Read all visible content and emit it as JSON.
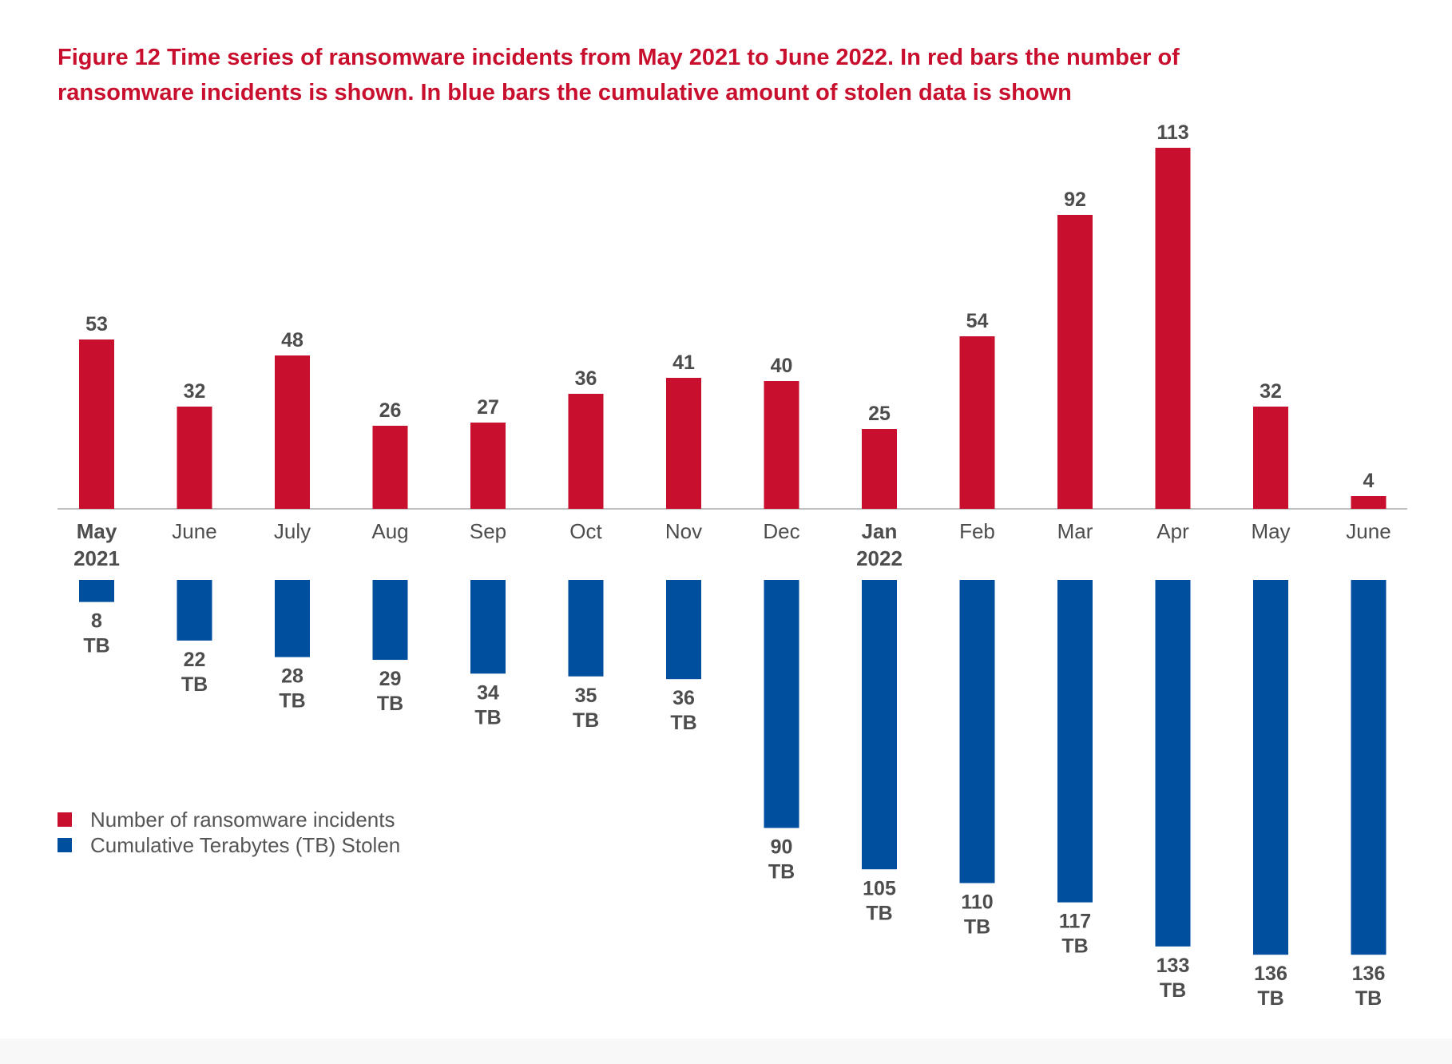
{
  "figure": {
    "title_line1": "Figure 12 Time series of ransomware incidents from May 2021 to June 2022. In red bars the number of",
    "title_line2": "ransomware incidents is shown. In blue bars the cumulative amount of stolen data is shown"
  },
  "colors": {
    "incidents": "#c8102e",
    "stolen": "#004f9f",
    "axis": "#bfbfbf",
    "label": "#4d4d4d",
    "title": "#c8102e"
  },
  "chart_data": {
    "type": "bar",
    "title": "",
    "xlabel": "",
    "ylabel": "",
    "categories": [
      {
        "month": "May",
        "year": "2021"
      },
      {
        "month": "June",
        "year": ""
      },
      {
        "month": "July",
        "year": ""
      },
      {
        "month": "Aug",
        "year": ""
      },
      {
        "month": "Sep",
        "year": ""
      },
      {
        "month": "Oct",
        "year": ""
      },
      {
        "month": "Nov",
        "year": ""
      },
      {
        "month": "Dec",
        "year": ""
      },
      {
        "month": "Jan",
        "year": "2022"
      },
      {
        "month": "Feb",
        "year": ""
      },
      {
        "month": "Mar",
        "year": ""
      },
      {
        "month": "Apr",
        "year": ""
      },
      {
        "month": "May",
        "year": ""
      },
      {
        "month": "June",
        "year": ""
      }
    ],
    "series": [
      {
        "name": "Number of ransomware incidents",
        "direction": "up",
        "values": [
          53,
          32,
          48,
          26,
          27,
          36,
          41,
          40,
          25,
          54,
          92,
          113,
          32,
          4
        ]
      },
      {
        "name": "Cumulative Terabytes (TB) Stolen",
        "direction": "down",
        "unit": "TB",
        "values": [
          8,
          22,
          28,
          29,
          34,
          35,
          36,
          90,
          105,
          110,
          117,
          133,
          136,
          136
        ]
      }
    ],
    "legend_position": "left",
    "grid": false
  }
}
